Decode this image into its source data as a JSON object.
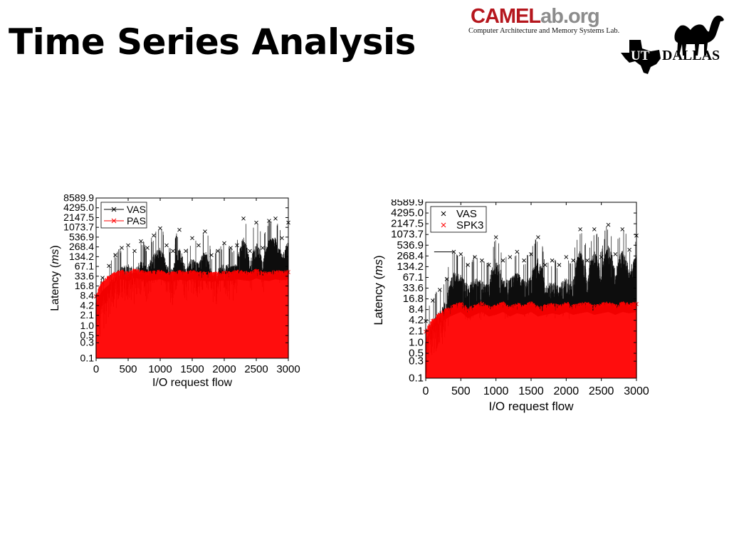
{
  "slide": {
    "title": "Time Series Analysis"
  },
  "logo": {
    "brand_part1": "CAMEL",
    "brand_part2": "ab.org",
    "subtitle": "Computer Architecture and Memory Systems Lab.",
    "ut_text": "UT",
    "dallas_text": "DALLAS",
    "icons": [
      "camel-icon",
      "texas-map-icon"
    ],
    "colors": {
      "camel_red": "#b5161d",
      "ab_gray": "#8c8c8c"
    }
  },
  "chart_data": [
    {
      "type": "line",
      "xlabel": "I/O request flow",
      "ylabel_prefix": "Latency (",
      "ylabel_unit": "ms",
      "ylabel_suffix": ")",
      "yscale": "log2",
      "xlim": [
        0,
        3000
      ],
      "ylim": [
        0.1,
        8589.9
      ],
      "x_ticks": [
        "0",
        "500",
        "1000",
        "1500",
        "2000",
        "2500",
        "3000"
      ],
      "y_ticks": [
        "8589.9",
        "4295.0",
        "2147.5",
        "1073.7",
        "536.9",
        "268.4",
        "134.2",
        "67.1",
        "33.6",
        "16.8",
        "8.4",
        "4.2",
        "2.1",
        "1.0",
        "0.5",
        "0.3",
        "0.1"
      ],
      "grid": false,
      "legend_position": "top-left",
      "series": [
        {
          "name": "VAS",
          "color": "#000000",
          "marker": "x",
          "x": [
            0,
            100,
            200,
            300,
            400,
            500,
            600,
            700,
            800,
            900,
            1000,
            1100,
            1200,
            1300,
            1400,
            1500,
            1600,
            1700,
            1800,
            1900,
            2000,
            2100,
            2200,
            2300,
            2400,
            2500,
            2600,
            2700,
            2800,
            2900,
            3000
          ],
          "y": [
            8,
            30,
            70,
            150,
            250,
            300,
            200,
            400,
            250,
            600,
            1000,
            300,
            200,
            900,
            200,
            500,
            300,
            800,
            150,
            200,
            350,
            250,
            300,
            2000,
            200,
            1500,
            250,
            1700,
            2000,
            500,
            1500
          ]
        },
        {
          "name": "PAS",
          "color": "#ff0000",
          "marker": "x",
          "x": [
            0,
            100,
            200,
            300,
            400,
            500,
            600,
            700,
            800,
            900,
            1000,
            1100,
            1200,
            1300,
            1400,
            1500,
            1600,
            1700,
            1800,
            1900,
            2000,
            2100,
            2200,
            2300,
            2400,
            2500,
            2600,
            2700,
            2800,
            2900,
            3000
          ],
          "y": [
            8,
            20,
            30,
            40,
            45,
            40,
            50,
            45,
            40,
            42,
            45,
            38,
            40,
            44,
            40,
            45,
            42,
            40,
            38,
            40,
            42,
            40,
            45,
            42,
            40,
            48,
            42,
            40,
            45,
            42,
            45
          ]
        }
      ]
    },
    {
      "type": "line",
      "xlabel": "I/O request flow",
      "ylabel_prefix": "Latency (",
      "ylabel_unit": "ms",
      "ylabel_suffix": ")",
      "yscale": "log2",
      "xlim": [
        0,
        3000
      ],
      "ylim": [
        0.1,
        8589.9
      ],
      "x_ticks": [
        "0",
        "500",
        "1000",
        "1500",
        "2000",
        "2500",
        "3000"
      ],
      "y_ticks": [
        "8589.9",
        "4295.0",
        "2147.5",
        "1073.7",
        "536.9",
        "268.4",
        "134.2",
        "67.1",
        "33.6",
        "16.8",
        "8.4",
        "4.2",
        "2.1",
        "1.0",
        "0.5",
        "0.3",
        "0.1"
      ],
      "grid": false,
      "legend_position": "top-left",
      "series": [
        {
          "name": "VAS",
          "color": "#000000",
          "marker": "x",
          "x": [
            0,
            100,
            200,
            300,
            400,
            500,
            600,
            700,
            800,
            900,
            1000,
            1100,
            1200,
            1300,
            1400,
            1500,
            1600,
            1700,
            1800,
            1900,
            2000,
            2100,
            2200,
            2300,
            2400,
            2500,
            2600,
            2700,
            2800,
            2900,
            3000
          ],
          "y": [
            4,
            15,
            30,
            60,
            350,
            300,
            150,
            250,
            200,
            150,
            900,
            200,
            250,
            350,
            200,
            300,
            900,
            150,
            200,
            150,
            250,
            200,
            1500,
            200,
            1500,
            250,
            2000,
            300,
            1500,
            400,
            1000
          ]
        },
        {
          "name": "SPK3",
          "color": "#ff0000",
          "marker": "x",
          "x": [
            0,
            100,
            200,
            300,
            400,
            500,
            600,
            700,
            800,
            900,
            1000,
            1100,
            1200,
            1300,
            1400,
            1500,
            1600,
            1700,
            1800,
            1900,
            2000,
            2100,
            2200,
            2300,
            2400,
            2500,
            2600,
            2700,
            2800,
            2900,
            3000
          ],
          "y": [
            2,
            4,
            6,
            8,
            10,
            12,
            8,
            10,
            12,
            9,
            10,
            12,
            9,
            11,
            10,
            12,
            9,
            10,
            11,
            10,
            12,
            10,
            11,
            12,
            10,
            11,
            12,
            10,
            12,
            11,
            12
          ]
        }
      ]
    }
  ]
}
